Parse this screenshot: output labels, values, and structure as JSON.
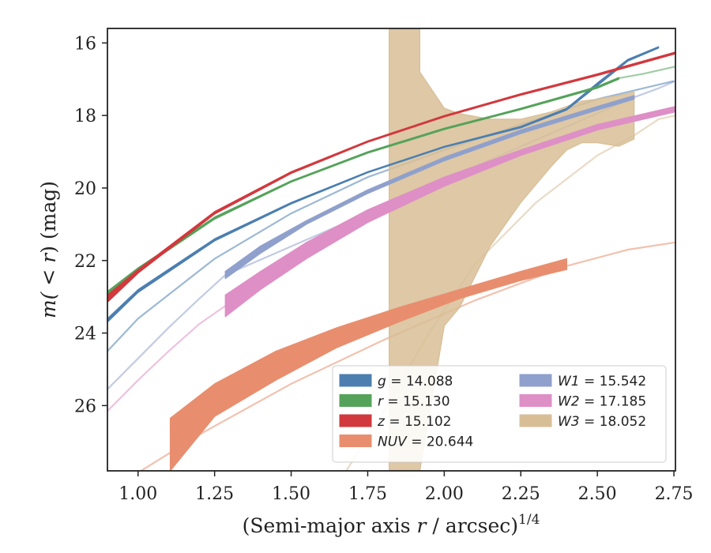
{
  "chart_data": {
    "type": "line",
    "title": "",
    "xlabel": "(Semi-major axis r / arcsec)",
    "xlabel_italic": "r",
    "xlabel_prefix": "(Semi-major axis ",
    "xlabel_suffix": " / arcsec)",
    "xlabel_exponent": "1/4",
    "ylabel_prefix": "m(",
    "ylabel_mid": " < ",
    "ylabel_var": "r",
    "ylabel_suffix": ") (mag)",
    "xlim": [
      0.9,
      2.755
    ],
    "ylim": [
      27.8,
      15.6
    ],
    "y_inverted": true,
    "x_ticks": [
      "1.00",
      "1.25",
      "1.50",
      "1.75",
      "2.00",
      "2.25",
      "2.50",
      "2.75"
    ],
    "x_tick_values": [
      1.0,
      1.25,
      1.5,
      1.75,
      2.0,
      2.25,
      2.5,
      2.75
    ],
    "y_ticks": [
      "16",
      "18",
      "20",
      "22",
      "24",
      "26"
    ],
    "y_tick_values": [
      16,
      18,
      20,
      22,
      24,
      26
    ],
    "grid": false,
    "legend_position": "lower-right",
    "series": [
      {
        "name": "g",
        "total": "14.088",
        "color": "#4c7fb0",
        "band_x": [
          0.9,
          1.0,
          1.25,
          1.5,
          1.75,
          2.0,
          2.25,
          2.4,
          2.5,
          2.6,
          2.7
        ],
        "band_upper": [
          23.6,
          22.8,
          21.4,
          20.4,
          19.55,
          18.85,
          18.3,
          17.8,
          17.1,
          16.45,
          16.1
        ],
        "band_lower": [
          23.7,
          22.88,
          21.46,
          20.44,
          19.58,
          18.88,
          18.34,
          17.85,
          17.18,
          16.5,
          16.14
        ],
        "extrap_x": [
          0.9,
          1.0,
          1.25,
          1.5,
          1.75,
          2.0,
          2.25,
          2.5,
          2.75
        ],
        "extrap_y": [
          24.5,
          23.6,
          21.95,
          20.7,
          19.7,
          18.95,
          18.25,
          17.55,
          17.05
        ]
      },
      {
        "name": "r",
        "total": "15.130",
        "color": "#55a35a",
        "band_x": [
          0.9,
          1.0,
          1.25,
          1.5,
          1.75,
          2.0,
          2.25,
          2.5,
          2.57
        ],
        "band_upper": [
          22.85,
          22.2,
          20.8,
          19.8,
          19.0,
          18.35,
          17.8,
          17.2,
          16.95
        ],
        "band_lower": [
          22.95,
          22.28,
          20.86,
          19.84,
          19.04,
          18.39,
          17.84,
          17.25,
          17.0
        ],
        "extrap_x": [
          2.57,
          2.65,
          2.755
        ],
        "extrap_y": [
          16.97,
          16.85,
          16.65
        ]
      },
      {
        "name": "z",
        "total": "15.102",
        "color": "#d1393e",
        "band_x": [
          0.9,
          1.0,
          1.25,
          1.5,
          1.75,
          2.0,
          2.25,
          2.5,
          2.755
        ],
        "band_upper": [
          22.95,
          22.25,
          20.65,
          19.55,
          18.7,
          18.0,
          17.4,
          16.85,
          16.25
        ],
        "band_lower": [
          23.15,
          22.35,
          20.72,
          19.6,
          18.74,
          18.04,
          17.44,
          16.9,
          16.3
        ],
        "extrap_x": [],
        "extrap_y": []
      },
      {
        "name": "NUV",
        "total": "20.644",
        "color": "#e88e6e",
        "band_x": [
          1.105,
          1.25,
          1.45,
          1.65,
          1.85,
          2.05,
          2.25,
          2.4
        ],
        "band_upper": [
          26.35,
          25.4,
          24.5,
          23.85,
          23.3,
          22.8,
          22.3,
          21.95
        ],
        "band_lower": [
          27.8,
          26.3,
          25.3,
          24.4,
          23.7,
          23.05,
          22.55,
          22.25
        ],
        "extrap_x": [
          1.0,
          1.2,
          1.5,
          1.8,
          2.1,
          2.4,
          2.6,
          2.755
        ],
        "extrap_y": [
          27.85,
          26.8,
          25.4,
          24.2,
          23.1,
          22.15,
          21.7,
          21.5
        ]
      },
      {
        "name": "W1",
        "total": "15.542",
        "color": "#8fa0cc",
        "band_x": [
          1.285,
          1.4,
          1.55,
          1.75,
          2.0,
          2.25,
          2.5,
          2.62
        ],
        "band_upper": [
          22.3,
          21.6,
          20.9,
          20.05,
          19.15,
          18.4,
          17.75,
          17.45
        ],
        "band_lower": [
          22.5,
          21.8,
          21.0,
          20.15,
          19.25,
          18.5,
          17.85,
          17.55
        ],
        "extrap_x": [
          0.9,
          1.0,
          1.1,
          1.2,
          1.285,
          2.62,
          2.7,
          2.755
        ],
        "extrap_y": [
          25.55,
          24.7,
          23.85,
          23.05,
          22.4,
          17.5,
          17.25,
          17.05
        ]
      },
      {
        "name": "W2",
        "total": "17.185",
        "color": "#de8fc6",
        "band_x": [
          1.285,
          1.4,
          1.55,
          1.75,
          2.0,
          2.25,
          2.5,
          2.755
        ],
        "band_upper": [
          22.95,
          22.3,
          21.5,
          20.6,
          19.7,
          18.95,
          18.25,
          17.75
        ],
        "band_lower": [
          23.55,
          22.8,
          21.95,
          20.95,
          19.95,
          19.1,
          18.4,
          17.9
        ],
        "extrap_x": [
          0.9,
          1.0,
          1.1,
          1.2,
          1.285
        ],
        "extrap_y": [
          26.15,
          25.3,
          24.5,
          23.75,
          23.25
        ]
      },
      {
        "name": "W3",
        "total": "18.052",
        "color": "#d8be97",
        "band_x": [
          1.82,
          1.82,
          1.92,
          1.92,
          2.0,
          2.05,
          2.15,
          2.25,
          2.35,
          2.4,
          2.45,
          2.5,
          2.57,
          2.62,
          2.62
        ],
        "band_upper": [
          15.6,
          15.6,
          15.6,
          16.8,
          17.8,
          17.95,
          18.1,
          18.1,
          17.9,
          17.75,
          17.6,
          17.55,
          17.45,
          17.35,
          17.35
        ],
        "band_lower": [
          27.8,
          27.8,
          27.8,
          27.8,
          23.8,
          23.3,
          21.6,
          20.4,
          19.4,
          18.95,
          18.75,
          18.75,
          18.85,
          18.65,
          18.65
        ],
        "extrap_x": [
          1.68,
          1.8,
          1.95,
          2.1,
          2.3,
          2.5,
          2.62,
          2.7,
          2.755
        ],
        "extrap_y": [
          27.8,
          26.2,
          24.0,
          22.1,
          20.4,
          19.1,
          18.55,
          18.1,
          18.0
        ]
      }
    ],
    "legend": {
      "ncols": 2,
      "entries": [
        {
          "label": "g",
          "value": "14.088",
          "color": "#4c7fb0"
        },
        {
          "label": "r",
          "value": "15.130",
          "color": "#55a35a"
        },
        {
          "label": "z",
          "value": "15.102",
          "color": "#d1393e"
        },
        {
          "label": "NUV",
          "value": "20.644",
          "color": "#e88e6e"
        },
        {
          "label": "W1",
          "value": "15.542",
          "color": "#8fa0cc"
        },
        {
          "label": "W2",
          "value": "17.185",
          "color": "#de8fc6"
        },
        {
          "label": "W3",
          "value": "18.052",
          "color": "#d8be97"
        }
      ]
    }
  }
}
